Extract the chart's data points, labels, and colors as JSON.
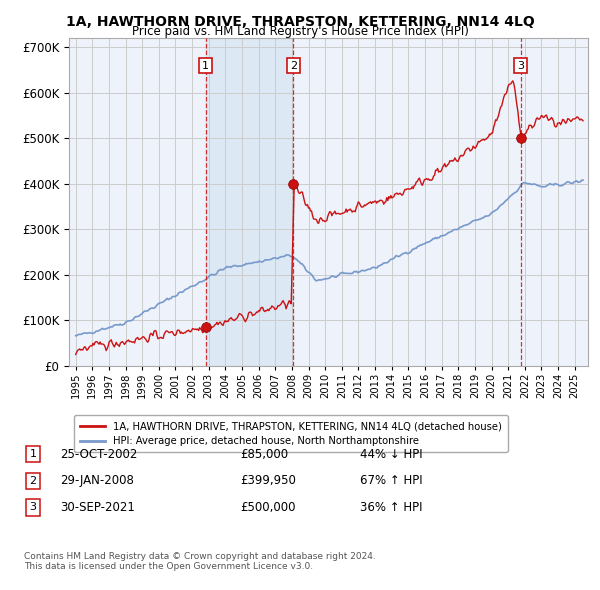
{
  "title": "1A, HAWTHORN DRIVE, THRAPSTON, KETTERING, NN14 4LQ",
  "subtitle": "Price paid vs. HM Land Registry's House Price Index (HPI)",
  "sale_times": [
    2002.81,
    2008.08,
    2021.75
  ],
  "sale_prices": [
    85000,
    399950,
    500000
  ],
  "sale_labels": [
    "1",
    "2",
    "3"
  ],
  "annot_dates": [
    "25-OCT-2002",
    "29-JAN-2008",
    "30-SEP-2021"
  ],
  "annot_prices": [
    "£85,000",
    "£399,950",
    "£500,000"
  ],
  "annot_hpi": [
    "44% ↓ HPI",
    "67% ↑ HPI",
    "36% ↑ HPI"
  ],
  "hpi_line_color": "#7799cc",
  "price_line_color": "#cc1111",
  "sale_marker_color": "#cc1111",
  "shade_color": "#dde8f5",
  "grid_color": "#cccccc",
  "background_color": "#ffffff",
  "plot_bg_color": "#eef2fa",
  "ylim": [
    0,
    720000
  ],
  "yticks": [
    0,
    100000,
    200000,
    300000,
    400000,
    500000,
    600000,
    700000
  ],
  "legend_label_price": "1A, HAWTHORN DRIVE, THRAPSTON, KETTERING, NN14 4LQ (detached house)",
  "legend_label_hpi": "HPI: Average price, detached house, North Northamptonshire",
  "footnote": "Contains HM Land Registry data © Crown copyright and database right 2024.\nThis data is licensed under the Open Government Licence v3.0."
}
